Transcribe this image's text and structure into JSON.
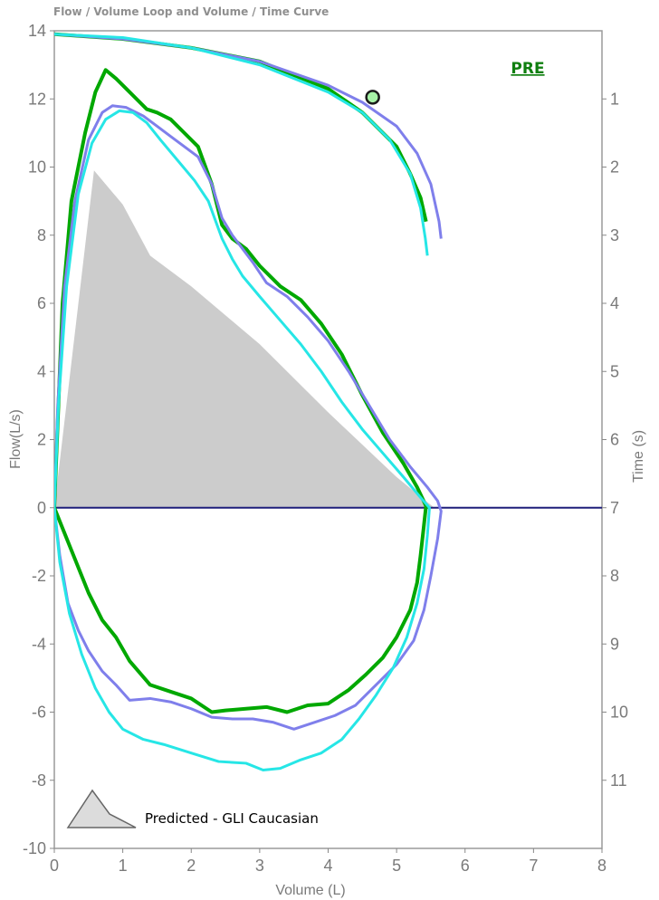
{
  "header": {
    "title": "Flow / Volume Loop and Volume / Time Curve"
  },
  "chart_data": {
    "type": "line",
    "title": "Flow / Volume Loop and Volume / Time Curve",
    "xlabel": "Volume (L)",
    "ylabel": "Flow(L/s)",
    "y2label": "Time (s)",
    "xlim": [
      0,
      8
    ],
    "ylim": [
      -10,
      14
    ],
    "y2lim": [
      12,
      0
    ],
    "x_ticks": [
      "0",
      "1",
      "2",
      "3",
      "4",
      "5",
      "6",
      "7",
      "8"
    ],
    "y_ticks": [
      "-10",
      "-8",
      "-6",
      "-4",
      "-2",
      "0",
      "2",
      "4",
      "6",
      "8",
      "10",
      "12",
      "14"
    ],
    "y2_ticks": [
      "1",
      "2",
      "3",
      "4",
      "5",
      "6",
      "7",
      "8",
      "9",
      "10",
      "11"
    ],
    "annotation": "PRE",
    "legend": {
      "entries": [
        "Predicted - GLI Caucasian"
      ],
      "placement": "bottom-left"
    },
    "zero_line_color": "#1f1f7a",
    "marker": {
      "x": 4.65,
      "y": 12.05,
      "color": "#a6f2a6",
      "edge_color": "#1a1a1a"
    },
    "predicted": {
      "name": "Predicted - GLI Caucasian",
      "color": "#cccccc",
      "points": [
        [
          0.0,
          0.0
        ],
        [
          0.58,
          9.9
        ],
        [
          1.0,
          8.9
        ],
        [
          1.4,
          7.4
        ],
        [
          2.0,
          6.5
        ],
        [
          3.0,
          4.8
        ],
        [
          4.0,
          2.8
        ],
        [
          5.0,
          0.9
        ],
        [
          5.55,
          0.0
        ]
      ]
    },
    "series": [
      {
        "color": "#00a800",
        "stroke_width": 4,
        "flow_volume": [
          [
            0.0,
            0.0
          ],
          [
            0.05,
            2.5
          ],
          [
            0.12,
            6.0
          ],
          [
            0.25,
            9.0
          ],
          [
            0.45,
            11.0
          ],
          [
            0.6,
            12.2
          ],
          [
            0.75,
            12.85
          ],
          [
            0.9,
            12.6
          ],
          [
            1.05,
            12.3
          ],
          [
            1.2,
            12.0
          ],
          [
            1.35,
            11.7
          ],
          [
            1.5,
            11.6
          ],
          [
            1.7,
            11.4
          ],
          [
            1.9,
            11.0
          ],
          [
            2.1,
            10.6
          ],
          [
            2.3,
            9.5
          ],
          [
            2.45,
            8.3
          ],
          [
            2.6,
            7.9
          ],
          [
            2.8,
            7.6
          ],
          [
            3.0,
            7.1
          ],
          [
            3.3,
            6.5
          ],
          [
            3.6,
            6.1
          ],
          [
            3.9,
            5.4
          ],
          [
            4.2,
            4.5
          ],
          [
            4.5,
            3.3
          ],
          [
            4.8,
            2.2
          ],
          [
            5.1,
            1.3
          ],
          [
            5.3,
            0.6
          ],
          [
            5.43,
            0.05
          ],
          [
            5.4,
            -0.5
          ],
          [
            5.35,
            -1.4
          ],
          [
            5.3,
            -2.2
          ],
          [
            5.2,
            -3.0
          ],
          [
            5.0,
            -3.8
          ],
          [
            4.8,
            -4.4
          ],
          [
            4.55,
            -4.9
          ],
          [
            4.3,
            -5.35
          ],
          [
            4.0,
            -5.75
          ],
          [
            3.7,
            -5.8
          ],
          [
            3.4,
            -6.0
          ],
          [
            3.1,
            -5.85
          ],
          [
            2.8,
            -5.9
          ],
          [
            2.5,
            -5.95
          ],
          [
            2.3,
            -6.0
          ],
          [
            2.0,
            -5.6
          ],
          [
            1.7,
            -5.4
          ],
          [
            1.4,
            -5.2
          ],
          [
            1.1,
            -4.5
          ],
          [
            0.9,
            -3.8
          ],
          [
            0.7,
            -3.3
          ],
          [
            0.5,
            -2.5
          ],
          [
            0.3,
            -1.5
          ],
          [
            0.12,
            -0.6
          ],
          [
            0.0,
            0.0
          ]
        ],
        "volume_time": [
          [
            0.0,
            0.05
          ],
          [
            1.0,
            0.12
          ],
          [
            2.0,
            0.25
          ],
          [
            3.0,
            0.45
          ],
          [
            4.0,
            0.85
          ],
          [
            4.5,
            1.2
          ],
          [
            5.0,
            1.7
          ],
          [
            5.2,
            2.1
          ],
          [
            5.35,
            2.45
          ],
          [
            5.43,
            2.8
          ]
        ]
      },
      {
        "color": "#7f7feb",
        "stroke_width": 3,
        "flow_volume": [
          [
            0.0,
            0.0
          ],
          [
            0.05,
            3.0
          ],
          [
            0.15,
            6.5
          ],
          [
            0.3,
            9.0
          ],
          [
            0.5,
            10.8
          ],
          [
            0.7,
            11.6
          ],
          [
            0.85,
            11.8
          ],
          [
            1.05,
            11.75
          ],
          [
            1.3,
            11.5
          ],
          [
            1.5,
            11.2
          ],
          [
            1.7,
            10.9
          ],
          [
            1.9,
            10.6
          ],
          [
            2.1,
            10.3
          ],
          [
            2.3,
            9.5
          ],
          [
            2.45,
            8.5
          ],
          [
            2.6,
            8.0
          ],
          [
            2.75,
            7.6
          ],
          [
            2.9,
            7.2
          ],
          [
            3.1,
            6.6
          ],
          [
            3.4,
            6.2
          ],
          [
            3.7,
            5.6
          ],
          [
            4.0,
            4.9
          ],
          [
            4.3,
            4.0
          ],
          [
            4.6,
            3.0
          ],
          [
            4.9,
            2.0
          ],
          [
            5.2,
            1.2
          ],
          [
            5.45,
            0.6
          ],
          [
            5.6,
            0.2
          ],
          [
            5.65,
            -0.1
          ],
          [
            5.6,
            -0.9
          ],
          [
            5.5,
            -2.0
          ],
          [
            5.4,
            -3.0
          ],
          [
            5.25,
            -3.9
          ],
          [
            5.0,
            -4.6
          ],
          [
            4.7,
            -5.2
          ],
          [
            4.4,
            -5.8
          ],
          [
            4.1,
            -6.1
          ],
          [
            3.8,
            -6.3
          ],
          [
            3.5,
            -6.5
          ],
          [
            3.2,
            -6.3
          ],
          [
            2.9,
            -6.2
          ],
          [
            2.6,
            -6.2
          ],
          [
            2.3,
            -6.15
          ],
          [
            2.0,
            -5.9
          ],
          [
            1.7,
            -5.7
          ],
          [
            1.4,
            -5.6
          ],
          [
            1.1,
            -5.65
          ],
          [
            0.9,
            -5.2
          ],
          [
            0.7,
            -4.8
          ],
          [
            0.5,
            -4.2
          ],
          [
            0.35,
            -3.6
          ],
          [
            0.2,
            -2.8
          ],
          [
            0.08,
            -1.4
          ],
          [
            0.0,
            0.0
          ]
        ],
        "volume_time": [
          [
            0.0,
            0.05
          ],
          [
            1.0,
            0.12
          ],
          [
            2.0,
            0.25
          ],
          [
            3.0,
            0.45
          ],
          [
            4.0,
            0.8
          ],
          [
            4.5,
            1.05
          ],
          [
            5.0,
            1.4
          ],
          [
            5.3,
            1.8
          ],
          [
            5.5,
            2.25
          ],
          [
            5.62,
            2.8
          ],
          [
            5.65,
            3.05
          ]
        ]
      },
      {
        "color": "#26e6e6",
        "stroke_width": 3,
        "flow_volume": [
          [
            0.0,
            0.0
          ],
          [
            0.06,
            3.0
          ],
          [
            0.18,
            6.5
          ],
          [
            0.35,
            9.2
          ],
          [
            0.55,
            10.7
          ],
          [
            0.75,
            11.4
          ],
          [
            0.95,
            11.65
          ],
          [
            1.15,
            11.6
          ],
          [
            1.35,
            11.3
          ],
          [
            1.55,
            10.8
          ],
          [
            1.8,
            10.2
          ],
          [
            2.05,
            9.6
          ],
          [
            2.25,
            9.0
          ],
          [
            2.45,
            7.9
          ],
          [
            2.6,
            7.3
          ],
          [
            2.75,
            6.8
          ],
          [
            3.0,
            6.2
          ],
          [
            3.3,
            5.5
          ],
          [
            3.6,
            4.8
          ],
          [
            3.9,
            4.0
          ],
          [
            4.2,
            3.1
          ],
          [
            4.5,
            2.3
          ],
          [
            4.8,
            1.6
          ],
          [
            5.1,
            0.9
          ],
          [
            5.35,
            0.3
          ],
          [
            5.48,
            0.0
          ],
          [
            5.45,
            -0.8
          ],
          [
            5.4,
            -1.8
          ],
          [
            5.3,
            -2.8
          ],
          [
            5.15,
            -3.8
          ],
          [
            4.95,
            -4.7
          ],
          [
            4.7,
            -5.5
          ],
          [
            4.45,
            -6.2
          ],
          [
            4.2,
            -6.8
          ],
          [
            3.9,
            -7.2
          ],
          [
            3.6,
            -7.4
          ],
          [
            3.3,
            -7.65
          ],
          [
            3.05,
            -7.7
          ],
          [
            2.8,
            -7.5
          ],
          [
            2.4,
            -7.45
          ],
          [
            2.0,
            -7.2
          ],
          [
            1.6,
            -6.95
          ],
          [
            1.3,
            -6.8
          ],
          [
            1.0,
            -6.5
          ],
          [
            0.8,
            -6.0
          ],
          [
            0.6,
            -5.3
          ],
          [
            0.4,
            -4.3
          ],
          [
            0.22,
            -3.1
          ],
          [
            0.08,
            -1.6
          ],
          [
            0.0,
            0.0
          ]
        ],
        "volume_time": [
          [
            0.0,
            0.05
          ],
          [
            1.0,
            0.1
          ],
          [
            2.0,
            0.25
          ],
          [
            3.0,
            0.5
          ],
          [
            4.0,
            0.9
          ],
          [
            4.5,
            1.2
          ],
          [
            4.9,
            1.6
          ],
          [
            5.2,
            2.1
          ],
          [
            5.35,
            2.6
          ],
          [
            5.42,
            3.05
          ],
          [
            5.45,
            3.3
          ]
        ]
      }
    ],
    "colors": {
      "axis": "#888888",
      "tick": "#7a7a7a"
    }
  }
}
